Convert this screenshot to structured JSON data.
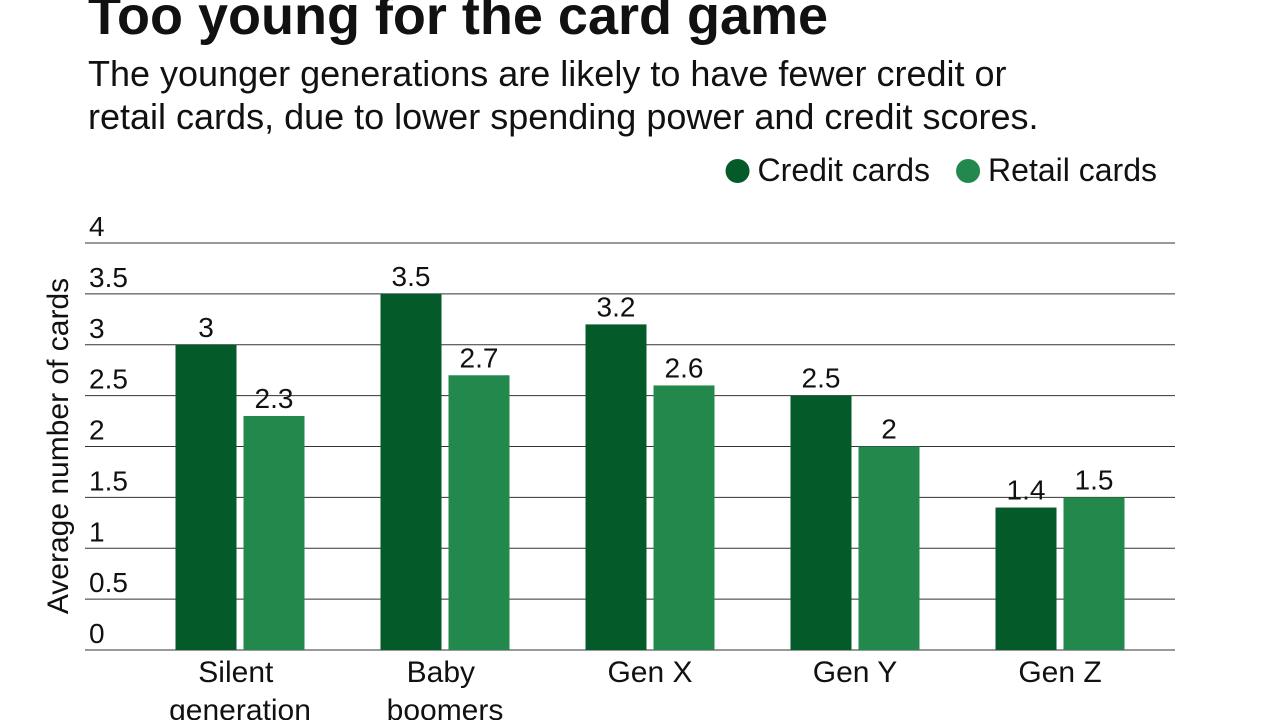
{
  "chart_data": {
    "type": "bar",
    "title": "Too young for the card game",
    "subtitle_lines": [
      "The younger generations are likely to have fewer credit or",
      "retail cards, due to lower spending power and credit scores."
    ],
    "y_label": "Average number of cards",
    "categories": [
      "Silent generation",
      "Baby boomers",
      "Gen X",
      "Gen Y",
      "Gen Z"
    ],
    "series": [
      {
        "name": "Credit cards",
        "color": "#055a29",
        "values": [
          3,
          3.5,
          3.2,
          2.5,
          1.4
        ]
      },
      {
        "name": "Retail cards",
        "color": "#22884c",
        "values": [
          2.3,
          2.7,
          2.6,
          2,
          1.5
        ]
      }
    ],
    "ylim": [
      0,
      4
    ],
    "yticks": [
      0,
      0.5,
      1,
      1.5,
      2,
      2.5,
      3,
      3.5,
      4
    ],
    "grid": true,
    "legend": "top-right"
  }
}
